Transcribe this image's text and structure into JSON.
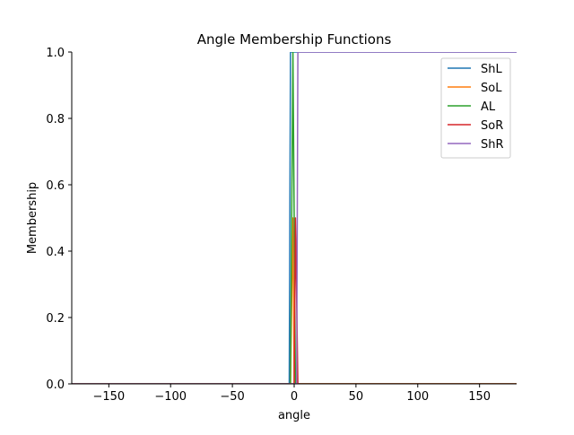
{
  "chart_data": {
    "type": "line",
    "title": "Angle Membership Functions",
    "xlabel": "angle",
    "ylabel": "Membership",
    "xlim": [
      -180,
      180
    ],
    "ylim": [
      0,
      1.0
    ],
    "xticks": [
      -150,
      -100,
      -50,
      0,
      50,
      100,
      150
    ],
    "xtick_labels": [
      "−150",
      "−100",
      "−50",
      "0",
      "50",
      "100",
      "150"
    ],
    "yticks": [
      0,
      0.2,
      0.4,
      0.6,
      0.8,
      1.0
    ],
    "ytick_labels": [
      "0.0",
      "0.2",
      "0.4",
      "0.6",
      "0.8",
      "1.0"
    ],
    "grid": false,
    "legend_position": "top-right",
    "series": [
      {
        "name": "ShL",
        "color": "#1f77b4",
        "points": [
          [
            -180,
            0
          ],
          [
            -4,
            0
          ],
          [
            -3,
            1
          ],
          [
            180,
            1
          ]
        ]
      },
      {
        "name": "SoL",
        "color": "#ff7f0e",
        "points": [
          [
            -180,
            0
          ],
          [
            -3,
            0
          ],
          [
            -1,
            0.5
          ],
          [
            0,
            0
          ],
          [
            180,
            0
          ]
        ]
      },
      {
        "name": "AL",
        "color": "#2ca02c",
        "points": [
          [
            -180,
            0
          ],
          [
            -3,
            0
          ],
          [
            -1,
            1
          ],
          [
            1,
            0
          ],
          [
            180,
            0
          ]
        ]
      },
      {
        "name": "SoR",
        "color": "#d62728",
        "points": [
          [
            -180,
            0
          ],
          [
            0,
            0
          ],
          [
            1,
            0.5
          ],
          [
            3,
            0
          ],
          [
            180,
            0
          ]
        ]
      },
      {
        "name": "ShR",
        "color": "#9467bd",
        "points": [
          [
            -180,
            0
          ],
          [
            2,
            0
          ],
          [
            3,
            1
          ],
          [
            180,
            1
          ]
        ]
      }
    ]
  }
}
